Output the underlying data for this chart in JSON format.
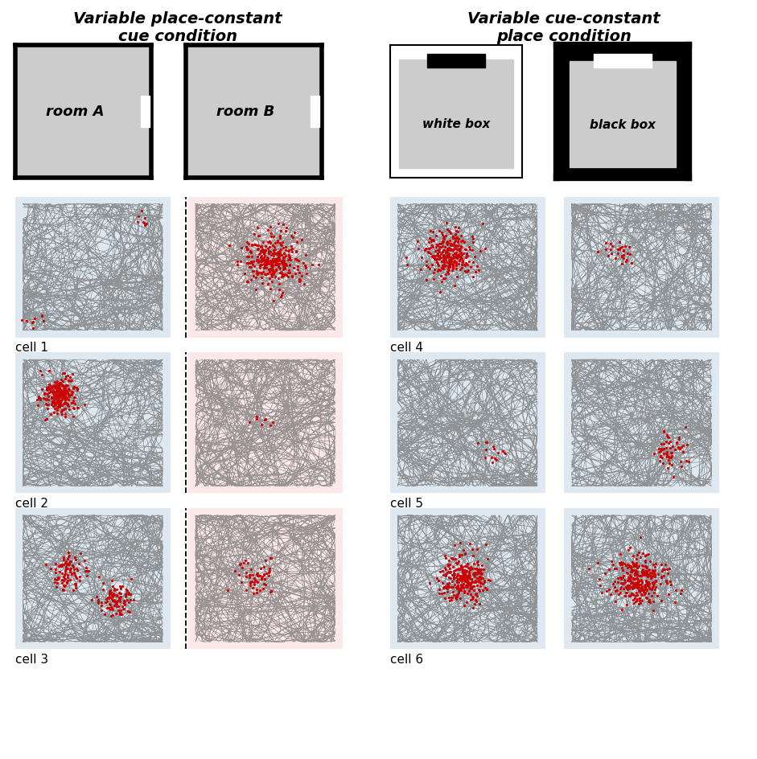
{
  "title_left": "Variable place-constant\ncue condition",
  "title_right": "Variable cue-constant\nplace condition",
  "cell_labels_left": [
    "cell 1",
    "cell 2",
    "cell 3"
  ],
  "cell_labels_right": [
    "cell 4",
    "cell 5",
    "cell 6"
  ],
  "bg_blue": "#dde8f0",
  "bg_pink": "#fce8e8",
  "bg_white": "#ffffff",
  "gray_box": "#cccccc",
  "black": "#000000",
  "white": "#ffffff",
  "red": "#cc0000",
  "track_color": "#666666"
}
